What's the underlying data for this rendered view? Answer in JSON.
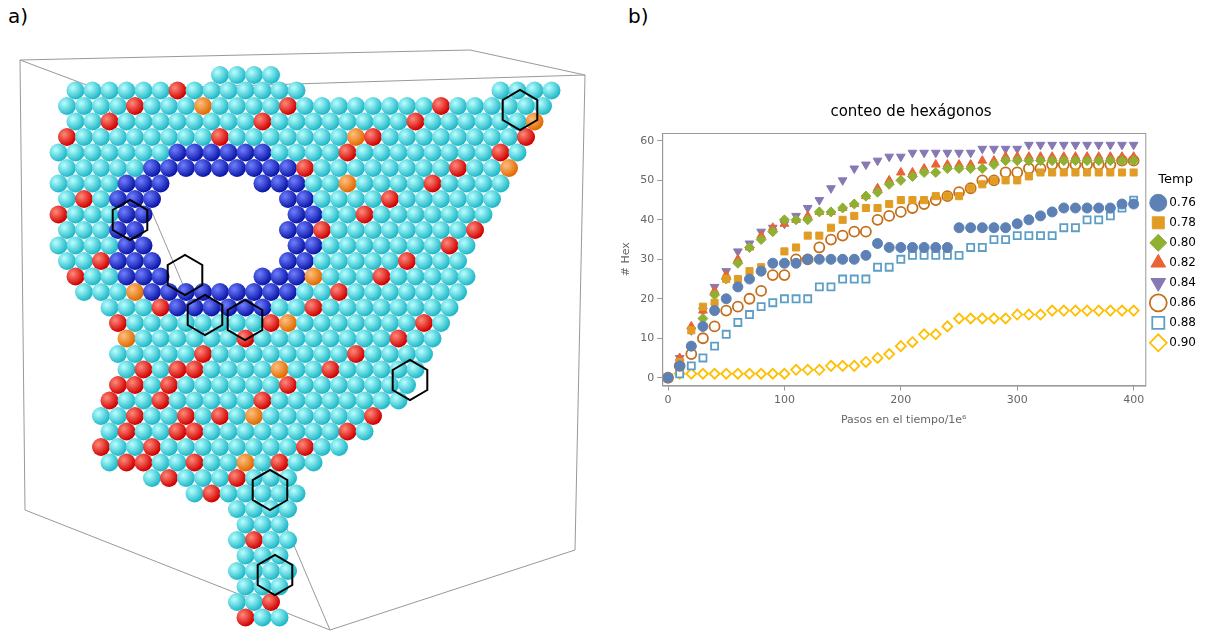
{
  "panel_labels": [
    "a)",
    "b)"
  ],
  "chart_data": {
    "type": "scatter",
    "title": "conteo de hexágonos",
    "x_label": "Pasos en el tiempo/1e⁶",
    "y_label": "# Hex",
    "legend_title": "Temp",
    "legend": "right",
    "grid": false,
    "xlim": [
      -5,
      410
    ],
    "ylim": [
      -2,
      62
    ],
    "xticks": [
      0,
      100,
      200,
      300,
      400
    ],
    "yticks": [
      0,
      10,
      20,
      30,
      40,
      50,
      60
    ],
    "x": [
      0,
      10,
      20,
      30,
      40,
      50,
      60,
      70,
      80,
      90,
      100,
      110,
      120,
      130,
      140,
      150,
      160,
      170,
      180,
      190,
      200,
      210,
      220,
      230,
      240,
      250,
      260,
      270,
      280,
      290,
      300,
      310,
      320,
      330,
      340,
      350,
      360,
      370,
      380,
      390,
      400
    ],
    "series": [
      {
        "name": "0.76",
        "color": "#5e81b5",
        "marker": "circle",
        "values": [
          0,
          3,
          8,
          13,
          17,
          20,
          23,
          25,
          27,
          29,
          29,
          29,
          30,
          30,
          30,
          30,
          30,
          31,
          34,
          33,
          33,
          33,
          33,
          33,
          33,
          38,
          38,
          38,
          38,
          38,
          39,
          40,
          41,
          42,
          43,
          43,
          43,
          43,
          43,
          44,
          44
        ]
      },
      {
        "name": "0.78",
        "color": "#e19c24",
        "marker": "square",
        "values": [
          0,
          4,
          12,
          18,
          19,
          25,
          25,
          27,
          28,
          29,
          32,
          33,
          36,
          36,
          38,
          40,
          41,
          43,
          43,
          44,
          45,
          45,
          45,
          46,
          46,
          46,
          48,
          49,
          50,
          50,
          50,
          51,
          52,
          52,
          52,
          52,
          52,
          52,
          52,
          52,
          52
        ]
      },
      {
        "name": "0.80",
        "color": "#8fb032",
        "marker": "diamond",
        "values": [
          0,
          3,
          8,
          15,
          21,
          25,
          29,
          33,
          35,
          37,
          40,
          40,
          40,
          42,
          42,
          43,
          44,
          46,
          47,
          49,
          50,
          51,
          52,
          52,
          53,
          53,
          53,
          53,
          54,
          55,
          55,
          55,
          55,
          55,
          55,
          55,
          55,
          55,
          55,
          55,
          55
        ]
      },
      {
        "name": "0.82",
        "color": "#eb6235",
        "marker": "triangle-up",
        "values": [
          0,
          5,
          13,
          17,
          22,
          26,
          30,
          33,
          36,
          38,
          39,
          40,
          41,
          42,
          42,
          43,
          44,
          46,
          48,
          50,
          52,
          52,
          53,
          54,
          54,
          54,
          54,
          55,
          55,
          56,
          56,
          56,
          56,
          56,
          56,
          56,
          56,
          56,
          56,
          56,
          56
        ]
      },
      {
        "name": "0.84",
        "color": "#8778b3",
        "marker": "triangle-down",
        "values": [
          0,
          5,
          12,
          17,
          23,
          27,
          32,
          34,
          37,
          38,
          39,
          41,
          43,
          45,
          48,
          50,
          53,
          54,
          55,
          56,
          56,
          57,
          57,
          57,
          57,
          57,
          57,
          58,
          58,
          58,
          58,
          59,
          59,
          59,
          59,
          59,
          59,
          59,
          59,
          59,
          59
        ]
      },
      {
        "name": "0.86",
        "color": "#c56e1a",
        "marker": "open-circle",
        "values": [
          0,
          3,
          6,
          10,
          13,
          17,
          18,
          20,
          22,
          26,
          26,
          30,
          30,
          33,
          35,
          36,
          37,
          37,
          40,
          41,
          42,
          43,
          44,
          45,
          46,
          47,
          48,
          50,
          50,
          52,
          52,
          53,
          53,
          54,
          54,
          54,
          54,
          54,
          54,
          55,
          55
        ]
      },
      {
        "name": "0.88",
        "color": "#5d9ec7",
        "marker": "open-square",
        "values": [
          0,
          1,
          3,
          5,
          8,
          11,
          14,
          16,
          18,
          19,
          20,
          20,
          20,
          23,
          23,
          25,
          25,
          25,
          28,
          28,
          30,
          31,
          31,
          31,
          31,
          31,
          33,
          33,
          35,
          35,
          36,
          36,
          36,
          36,
          38,
          38,
          40,
          40,
          41,
          43,
          45
        ]
      },
      {
        "name": "0.90",
        "color": "#ffbf00",
        "marker": "open-diamond",
        "values": [
          0,
          1,
          1,
          1,
          1,
          1,
          1,
          1,
          1,
          1,
          1,
          2,
          2,
          2,
          3,
          3,
          3,
          4,
          5,
          6,
          8,
          9,
          11,
          11,
          13,
          15,
          15,
          15,
          15,
          15,
          16,
          16,
          16,
          17,
          17,
          17,
          17,
          17,
          17,
          17,
          17
        ]
      }
    ]
  }
}
